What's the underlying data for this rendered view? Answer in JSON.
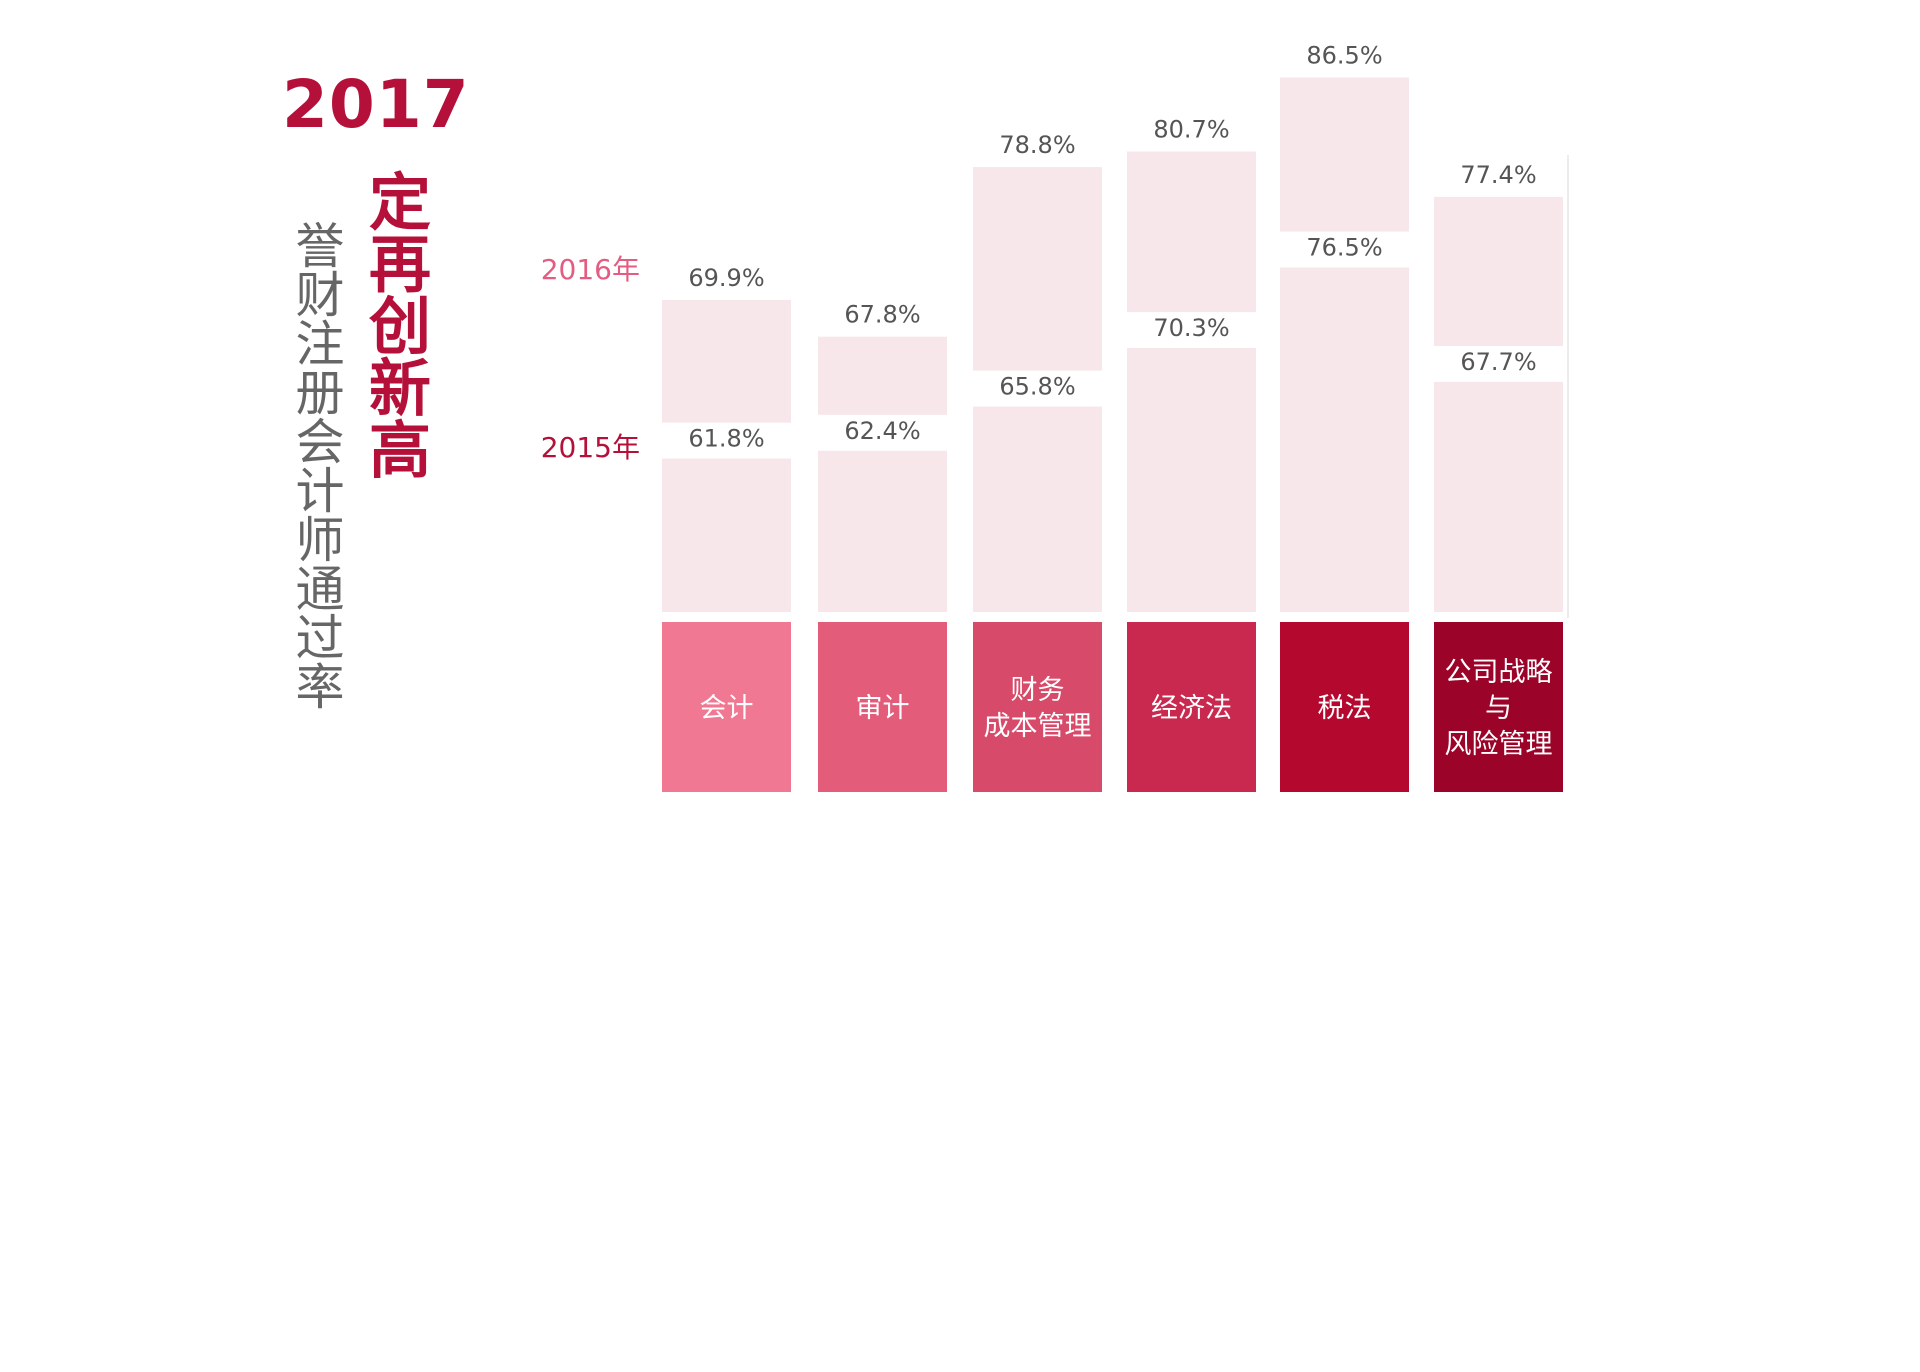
{
  "heading": {
    "year": "2017",
    "headline": "定再创新高",
    "subtitle": "誉财注册会计师通过率"
  },
  "colors": {
    "accent": "#b5103a",
    "label_2016": "#e35d82",
    "label_2015": "#b5103a",
    "bar_fill": "#f7e6ea",
    "category_fills": [
      "#f07893",
      "#e35d7b",
      "#d84a6a",
      "#c9284f",
      "#b5082f",
      "#9b0328"
    ]
  },
  "chart_data": {
    "type": "bar",
    "categories": [
      [
        "会计"
      ],
      [
        "审计"
      ],
      [
        "财务",
        "成本管理"
      ],
      [
        "经济法"
      ],
      [
        "税法"
      ],
      [
        "公司战略",
        "与",
        "风险管理"
      ]
    ],
    "series": [
      {
        "name": "2015年",
        "values": [
          61.8,
          62.4,
          65.8,
          70.3,
          76.5,
          67.7
        ],
        "labels": [
          "61.8%",
          "62.4%",
          "65.8%",
          "70.3%",
          "76.5%",
          "67.7%"
        ]
      },
      {
        "name": "2016年",
        "values": [
          69.9,
          67.8,
          78.8,
          80.7,
          86.5,
          77.4
        ],
        "labels": [
          "69.9%",
          "67.8%",
          "78.8%",
          "80.7%",
          "86.5%",
          "77.4%"
        ]
      }
    ],
    "unit": "%"
  }
}
